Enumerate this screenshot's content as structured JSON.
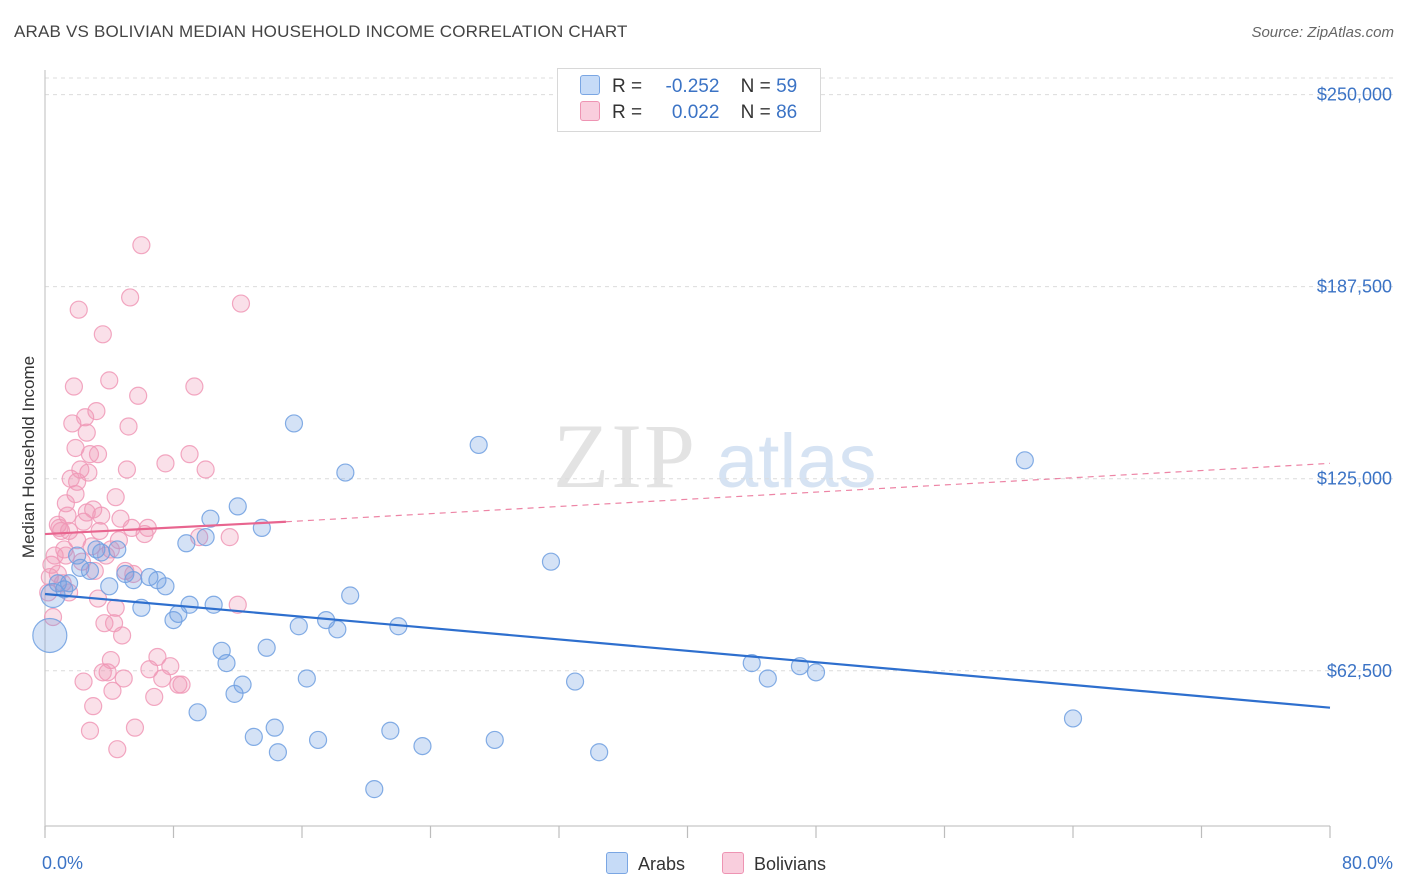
{
  "title": "ARAB VS BOLIVIAN MEDIAN HOUSEHOLD INCOME CORRELATION CHART",
  "source": "Source: ZipAtlas.com",
  "watermark": {
    "zip": "ZIP",
    "atlas": "atlas"
  },
  "legend": {
    "arabs": {
      "r_label": "R =",
      "r_value": "-0.252",
      "n_label": "N =",
      "n_value": "59"
    },
    "bolivians": {
      "r_label": "R =",
      "r_value": "0.022",
      "n_label": "N =",
      "n_value": "86"
    }
  },
  "chart_data": {
    "type": "scatter",
    "title": "ARAB VS BOLIVIAN MEDIAN HOUSEHOLD INCOME CORRELATION CHART",
    "xlabel": "",
    "ylabel": "Median Household Income",
    "xlim": [
      0,
      80
    ],
    "ylim": [
      12000,
      258000
    ],
    "x_tick_labels": [
      "0.0%",
      "80.0%"
    ],
    "y_ticks": [
      62500,
      125000,
      187500,
      250000
    ],
    "y_tick_labels": [
      "$62,500",
      "$125,000",
      "$187,500",
      "$250,000"
    ],
    "colors": {
      "arabs": "#6f9fe0",
      "arabs_line": "#2e6fce",
      "bolivians": "#f098b6",
      "bolivians_line": "#e8658f"
    },
    "series": [
      {
        "name": "Arabs",
        "trend": {
          "x": [
            0,
            80
          ],
          "y": [
            87500,
            50500
          ]
        },
        "points": [
          [
            0.3,
            74000
          ],
          [
            0.5,
            87000
          ],
          [
            0.8,
            91000
          ],
          [
            1.2,
            89000
          ],
          [
            1.5,
            91000
          ],
          [
            2.0,
            100000
          ],
          [
            2.2,
            96000
          ],
          [
            2.8,
            95000
          ],
          [
            3.2,
            102000
          ],
          [
            3.5,
            101000
          ],
          [
            4.0,
            90000
          ],
          [
            4.5,
            102000
          ],
          [
            5.0,
            94000
          ],
          [
            5.5,
            92000
          ],
          [
            6.0,
            83000
          ],
          [
            6.5,
            93000
          ],
          [
            7.0,
            92000
          ],
          [
            7.5,
            90000
          ],
          [
            8.0,
            79000
          ],
          [
            8.3,
            81000
          ],
          [
            8.8,
            104000
          ],
          [
            9.0,
            84000
          ],
          [
            9.5,
            49000
          ],
          [
            10.0,
            106000
          ],
          [
            10.3,
            112000
          ],
          [
            10.5,
            84000
          ],
          [
            11.0,
            69000
          ],
          [
            11.3,
            65000
          ],
          [
            11.8,
            55000
          ],
          [
            12.0,
            116000
          ],
          [
            12.3,
            58000
          ],
          [
            13.0,
            41000
          ],
          [
            13.5,
            109000
          ],
          [
            13.8,
            70000
          ],
          [
            14.3,
            44000
          ],
          [
            14.5,
            36000
          ],
          [
            15.5,
            143000
          ],
          [
            15.8,
            77000
          ],
          [
            16.3,
            60000
          ],
          [
            17.0,
            40000
          ],
          [
            17.5,
            79000
          ],
          [
            18.2,
            76000
          ],
          [
            18.7,
            127000
          ],
          [
            19.0,
            87000
          ],
          [
            20.5,
            24000
          ],
          [
            21.5,
            43000
          ],
          [
            22.0,
            77000
          ],
          [
            23.5,
            38000
          ],
          [
            27.0,
            136000
          ],
          [
            28.0,
            40000
          ],
          [
            31.5,
            98000
          ],
          [
            33.0,
            59000
          ],
          [
            34.5,
            36000
          ],
          [
            44.0,
            65000
          ],
          [
            45.0,
            60000
          ],
          [
            47.0,
            64000
          ],
          [
            48.0,
            62000
          ],
          [
            61.0,
            131000
          ],
          [
            64.0,
            47000
          ]
        ]
      },
      {
        "name": "Bolivians",
        "trend": {
          "x": [
            0,
            15
          ],
          "y": [
            107000,
            111000
          ]
        },
        "trend_extended": {
          "x": [
            15,
            80
          ],
          "y": [
            111000,
            130000
          ]
        },
        "points": [
          [
            0.2,
            88000
          ],
          [
            0.3,
            93000
          ],
          [
            0.4,
            97000
          ],
          [
            0.5,
            80000
          ],
          [
            0.6,
            100000
          ],
          [
            0.8,
            110000
          ],
          [
            0.8,
            94000
          ],
          [
            1.0,
            108000
          ],
          [
            1.1,
            91000
          ],
          [
            1.2,
            102000
          ],
          [
            1.3,
            117000
          ],
          [
            1.4,
            113000
          ],
          [
            1.5,
            108000
          ],
          [
            1.5,
            88000
          ],
          [
            1.6,
            125000
          ],
          [
            1.7,
            143000
          ],
          [
            1.8,
            155000
          ],
          [
            1.9,
            135000
          ],
          [
            2.0,
            124000
          ],
          [
            2.0,
            105000
          ],
          [
            2.1,
            180000
          ],
          [
            2.2,
            128000
          ],
          [
            2.3,
            98000
          ],
          [
            2.4,
            111000
          ],
          [
            2.5,
            145000
          ],
          [
            2.6,
            140000
          ],
          [
            2.7,
            127000
          ],
          [
            2.8,
            133000
          ],
          [
            2.9,
            103000
          ],
          [
            3.0,
            115000
          ],
          [
            3.1,
            95000
          ],
          [
            3.2,
            147000
          ],
          [
            3.3,
            86000
          ],
          [
            3.4,
            108000
          ],
          [
            3.5,
            113000
          ],
          [
            3.6,
            172000
          ],
          [
            3.7,
            78000
          ],
          [
            3.8,
            100000
          ],
          [
            3.9,
            62000
          ],
          [
            4.0,
            157000
          ],
          [
            4.1,
            102000
          ],
          [
            4.2,
            56000
          ],
          [
            4.3,
            78000
          ],
          [
            4.4,
            119000
          ],
          [
            4.5,
            37000
          ],
          [
            4.6,
            105000
          ],
          [
            4.7,
            112000
          ],
          [
            4.8,
            74000
          ],
          [
            4.9,
            60000
          ],
          [
            5.0,
            95000
          ],
          [
            5.1,
            128000
          ],
          [
            5.2,
            142000
          ],
          [
            5.3,
            184000
          ],
          [
            5.4,
            109000
          ],
          [
            5.5,
            94000
          ],
          [
            5.6,
            44000
          ],
          [
            5.8,
            152000
          ],
          [
            6.0,
            201000
          ],
          [
            6.2,
            107000
          ],
          [
            6.5,
            63000
          ],
          [
            6.8,
            54000
          ],
          [
            7.0,
            67000
          ],
          [
            7.3,
            60000
          ],
          [
            7.5,
            130000
          ],
          [
            7.8,
            64000
          ],
          [
            8.3,
            58000
          ],
          [
            8.5,
            58000
          ],
          [
            9.0,
            133000
          ],
          [
            9.3,
            155000
          ],
          [
            9.6,
            106000
          ],
          [
            10.0,
            128000
          ],
          [
            11.5,
            106000
          ],
          [
            12.0,
            84000
          ],
          [
            12.2,
            182000
          ],
          [
            2.4,
            59000
          ],
          [
            2.8,
            43000
          ],
          [
            3.0,
            51000
          ],
          [
            3.6,
            62000
          ],
          [
            4.1,
            66000
          ],
          [
            1.3,
            100000
          ],
          [
            0.9,
            109000
          ],
          [
            1.9,
            120000
          ],
          [
            2.6,
            114000
          ],
          [
            3.3,
            133000
          ],
          [
            4.4,
            83000
          ],
          [
            6.4,
            109000
          ]
        ]
      }
    ]
  },
  "bottom_legend": {
    "arabs_label": "Arabs",
    "bolivians_label": "Bolivians"
  }
}
